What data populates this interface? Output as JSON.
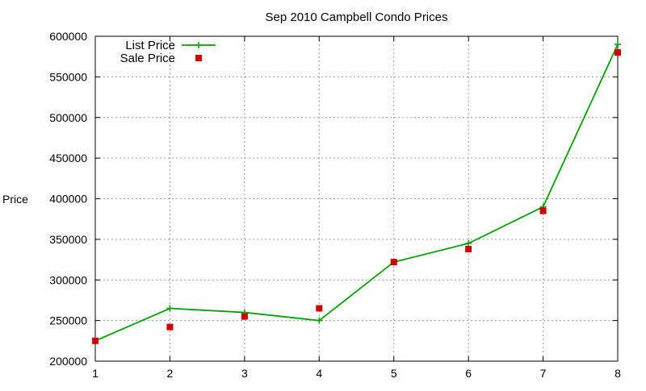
{
  "chart_data": {
    "type": "line",
    "title": "Sep 2010 Campbell Condo Prices",
    "xlabel": "",
    "ylabel": "Price",
    "x": [
      1,
      2,
      3,
      4,
      5,
      6,
      7,
      8
    ],
    "xlim": [
      1,
      8
    ],
    "ylim": [
      200000,
      600000
    ],
    "xticks": [
      "1",
      "2",
      "3",
      "4",
      "5",
      "6",
      "7",
      "8"
    ],
    "yticks": [
      "200000",
      "250000",
      "300000",
      "350000",
      "400000",
      "450000",
      "500000",
      "550000",
      "600000"
    ],
    "grid": true,
    "legend_position": "top-left",
    "series": [
      {
        "name": "List Price",
        "style": "line+plus",
        "color": "#00a000",
        "values": [
          225000,
          265000,
          260000,
          250000,
          322000,
          345000,
          390000,
          590000
        ]
      },
      {
        "name": "Sale Price",
        "style": "square-markers",
        "color": "#cc0000",
        "values": [
          225000,
          242000,
          255000,
          265000,
          322000,
          338000,
          385000,
          580000
        ]
      }
    ]
  }
}
